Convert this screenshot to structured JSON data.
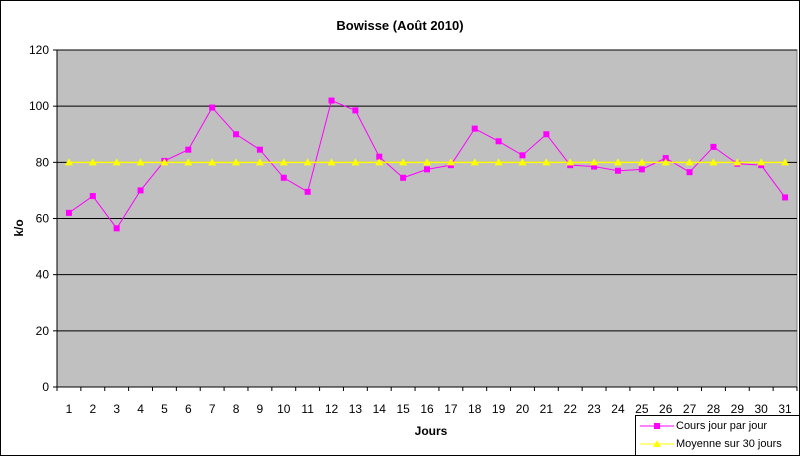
{
  "chart_data": {
    "type": "line",
    "title": "Bowisse (Août 2010)",
    "xlabel": "Jours",
    "ylabel": "k/o",
    "x": [
      1,
      2,
      3,
      4,
      5,
      6,
      7,
      8,
      9,
      10,
      11,
      12,
      13,
      14,
      15,
      16,
      17,
      18,
      19,
      20,
      21,
      22,
      23,
      24,
      25,
      26,
      27,
      28,
      29,
      30,
      31
    ],
    "ylim": [
      0,
      120
    ],
    "yticks": [
      0,
      20,
      40,
      60,
      80,
      100,
      120
    ],
    "grid": "horizontal major",
    "plot_background": "#c0c0c0",
    "legend_position": "bottom-right",
    "series": [
      {
        "name": "Cours jour par jour",
        "color": "#ff00ff",
        "marker": "square",
        "values": [
          62,
          68,
          56.5,
          70,
          80.5,
          84.5,
          99.5,
          90,
          84.5,
          74.5,
          69.5,
          102,
          98.5,
          82,
          74.5,
          77.5,
          79,
          92,
          87.5,
          82.5,
          90,
          79,
          78.5,
          77,
          77.5,
          81.5,
          76.5,
          85.5,
          79.5,
          79,
          67.5
        ]
      },
      {
        "name": "Moyenne sur 30 jours",
        "color": "#ffff00",
        "marker": "triangle",
        "values": [
          80,
          80,
          80,
          80,
          80,
          80,
          80,
          80,
          80,
          80,
          80,
          80,
          80,
          80,
          80,
          80,
          80,
          80,
          80,
          80,
          80,
          80,
          80,
          80,
          80,
          80,
          80,
          80,
          80,
          80,
          80
        ]
      }
    ]
  }
}
